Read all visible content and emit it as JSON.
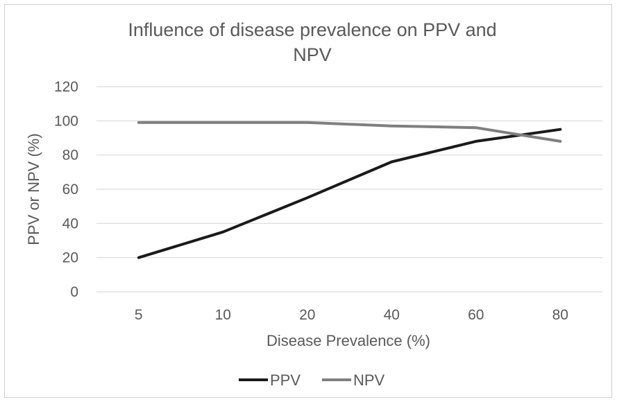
{
  "chart_data": {
    "type": "line",
    "title_lines": [
      "Influence of disease prevalence on PPV and",
      "NPV"
    ],
    "xlabel": "Disease Prevalence (%)",
    "ylabel": "PPV or NPV (%)",
    "categories": [
      "5",
      "10",
      "20",
      "40",
      "60",
      "80"
    ],
    "ylim": [
      0,
      120
    ],
    "yticks": [
      "0",
      "20",
      "40",
      "60",
      "80",
      "100",
      "120"
    ],
    "grid": true,
    "legend": "bottom",
    "series": [
      {
        "name": "PPV",
        "color": "#1a1a1a",
        "values": [
          20,
          35,
          55,
          76,
          88,
          95
        ]
      },
      {
        "name": "NPV",
        "color": "#7f7f7f",
        "values": [
          99,
          99,
          99,
          97,
          96,
          88
        ]
      }
    ]
  }
}
